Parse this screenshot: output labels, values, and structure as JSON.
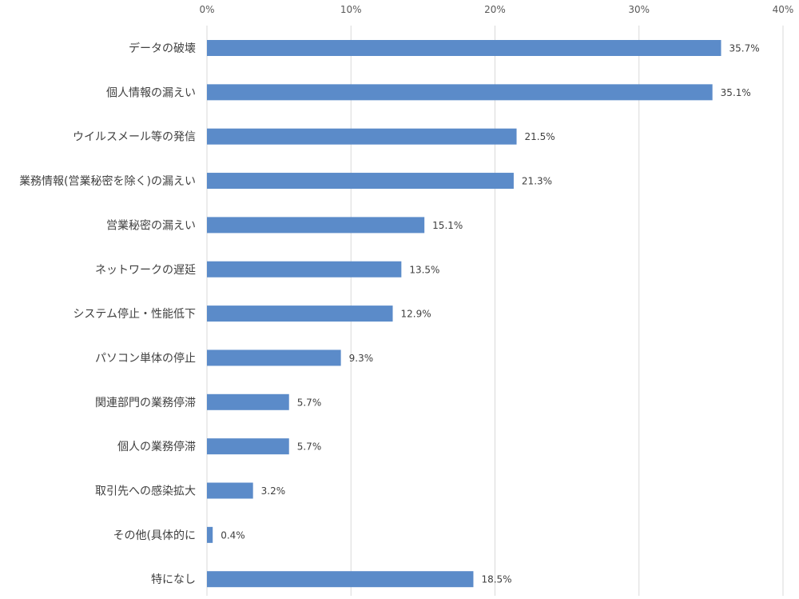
{
  "chart_data": {
    "type": "bar",
    "orientation": "horizontal",
    "categories": [
      "データの破壊",
      "個人情報の漏えい",
      "ウイルスメール等の発信",
      "業務情報(営業秘密を除く)の漏えい",
      "営業秘密の漏えい",
      "ネットワークの遅延",
      "システム停止・性能低下",
      "パソコン単体の停止",
      "関連部門の業務停滞",
      "個人の業務停滞",
      "取引先への感染拡大",
      "その他(具体的に",
      "特になし"
    ],
    "values": [
      35.7,
      35.1,
      21.5,
      21.3,
      15.1,
      13.5,
      12.9,
      9.3,
      5.7,
      5.7,
      3.2,
      0.4,
      18.5
    ],
    "data_labels": [
      "35.7%",
      "35.1%",
      "21.5%",
      "21.3%",
      "15.1%",
      "13.5%",
      "12.9%",
      "9.3%",
      "5.7%",
      "5.7%",
      "3.2%",
      "0.4%",
      "18.5%"
    ],
    "xlim": [
      0,
      40
    ],
    "x_ticks": [
      0,
      10,
      20,
      30,
      40
    ],
    "x_tick_labels": [
      "0%",
      "10%",
      "20%",
      "30%",
      "40%"
    ],
    "axis_position": "top",
    "grid": true,
    "title": "",
    "xlabel": "",
    "ylabel": "",
    "bar_color": "#5b8bc9"
  }
}
